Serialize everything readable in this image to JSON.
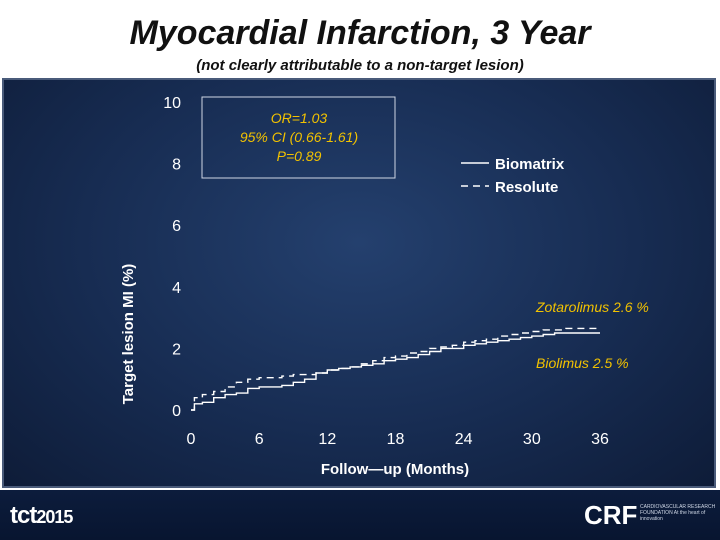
{
  "slide": {
    "title": "Myocardial Infarction, 3 Year",
    "subtitle": "(not clearly attributable to a non-target lesion)"
  },
  "stats_box": {
    "line1": "OR=1.03",
    "line2": "95% CI (0.66-1.61)",
    "line3": "P=0.89"
  },
  "annotations": {
    "zotarolimus": "Zotarolimus  2.6 %",
    "biolimus": "Biolimus  2.5 %"
  },
  "footer": {
    "left_logo": "tct",
    "left_year": "2015",
    "right_logo": "CRF",
    "right_tag": "CARDIOVASCULAR RESEARCH FOUNDATION At the heart of innovation"
  },
  "colors": {
    "panel_bg": "#172c52",
    "line": "#ffffff",
    "annotation": "#ffffff"
  },
  "chart_data": {
    "type": "line",
    "xlabel": "Follow—up  (Months)",
    "ylabel": "Target lesion MI (%)",
    "xlim": [
      0,
      36
    ],
    "ylim": [
      0,
      10
    ],
    "xticks": [
      0,
      6,
      12,
      18,
      24,
      30,
      36
    ],
    "yticks": [
      0,
      2,
      4,
      6,
      8,
      10
    ],
    "legend_position": "top-right",
    "series": [
      {
        "name": "Biomatrix",
        "style": "solid",
        "x": [
          0,
          0.3,
          1,
          2,
          3,
          4,
          5,
          6,
          7,
          8,
          9,
          10,
          11,
          12,
          13,
          14,
          15,
          16,
          17,
          18,
          19,
          20,
          21,
          22,
          23,
          24,
          25,
          26,
          27,
          28,
          29,
          30,
          31,
          32,
          33,
          34,
          35,
          36
        ],
        "y": [
          0,
          0.2,
          0.25,
          0.4,
          0.5,
          0.55,
          0.7,
          0.75,
          0.75,
          0.8,
          0.9,
          1.0,
          1.2,
          1.3,
          1.35,
          1.4,
          1.45,
          1.5,
          1.6,
          1.65,
          1.7,
          1.8,
          1.9,
          2.0,
          2.0,
          2.1,
          2.15,
          2.2,
          2.25,
          2.3,
          2.35,
          2.4,
          2.45,
          2.5,
          2.5,
          2.5,
          2.5,
          2.5
        ]
      },
      {
        "name": "Resolute",
        "style": "dashed",
        "x": [
          0,
          0.3,
          1,
          2,
          3,
          4,
          5,
          6,
          7,
          8,
          9,
          10,
          11,
          12,
          13,
          14,
          15,
          16,
          17,
          18,
          19,
          20,
          21,
          22,
          23,
          24,
          25,
          26,
          27,
          28,
          29,
          30,
          31,
          32,
          33,
          34,
          35,
          36
        ],
        "y": [
          0,
          0.4,
          0.5,
          0.6,
          0.75,
          0.9,
          1.0,
          1.05,
          1.05,
          1.1,
          1.15,
          1.15,
          1.2,
          1.3,
          1.35,
          1.4,
          1.5,
          1.6,
          1.7,
          1.75,
          1.85,
          1.9,
          2.0,
          2.05,
          2.1,
          2.2,
          2.25,
          2.3,
          2.4,
          2.45,
          2.5,
          2.55,
          2.6,
          2.6,
          2.65,
          2.65,
          2.65,
          2.65
        ]
      }
    ]
  }
}
